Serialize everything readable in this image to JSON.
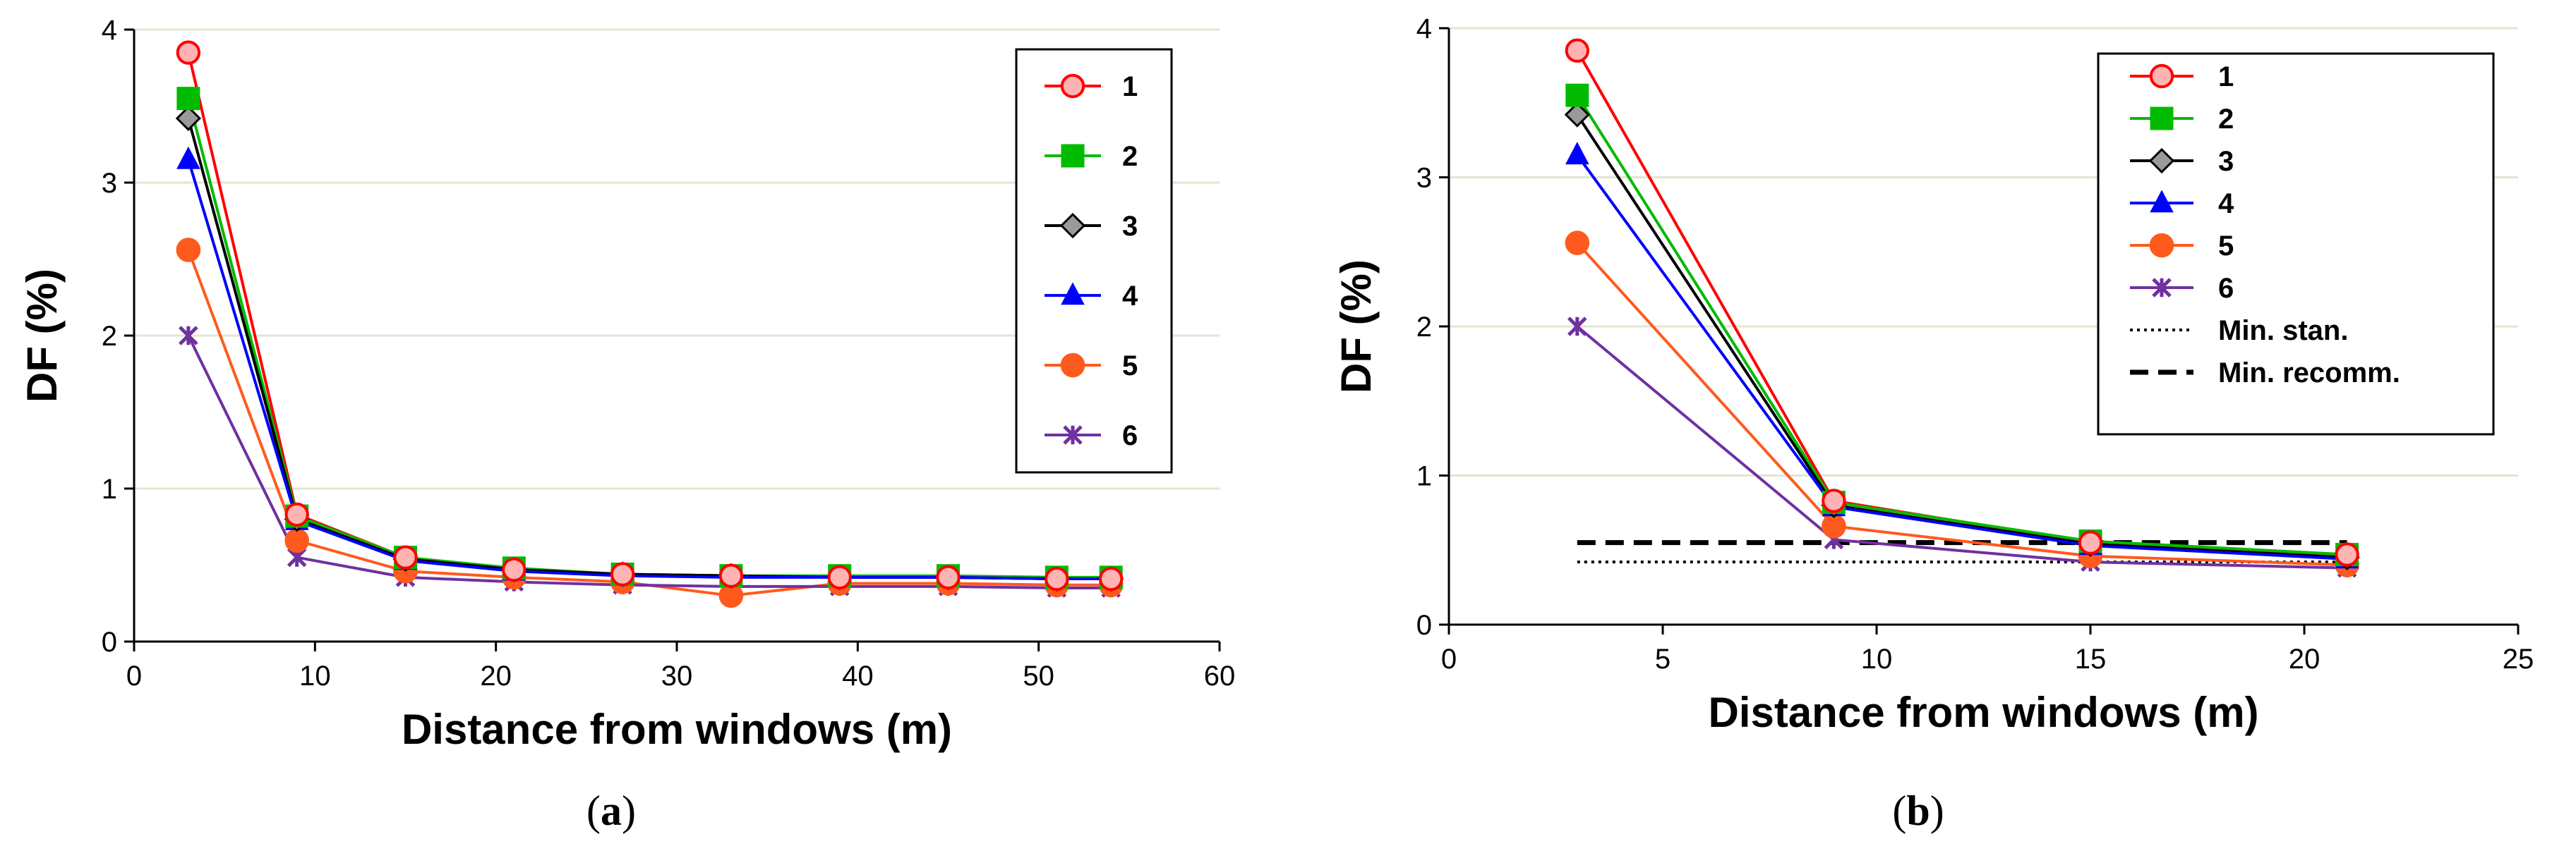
{
  "chart_data": [
    {
      "type": "line",
      "panel": "a",
      "caption": "(a)",
      "caption_letter": "a",
      "xlabel": "Distance from windows (m)",
      "ylabel": "DF (%)",
      "xlim": [
        0,
        60
      ],
      "ylim": [
        0,
        4
      ],
      "xticks": [
        0,
        10,
        20,
        30,
        40,
        50,
        60
      ],
      "yticks": [
        0,
        1,
        2,
        3,
        4
      ],
      "grid": "horizontal",
      "legend_position": "top-right",
      "x": [
        3,
        9,
        15,
        21,
        27,
        33,
        39,
        45,
        51,
        54
      ],
      "series": [
        {
          "name": "1",
          "color": "#ff0000",
          "marker": "circle-open",
          "values": [
            3.85,
            0.83,
            0.55,
            0.47,
            0.44,
            0.43,
            0.42,
            0.42,
            0.41,
            0.41
          ]
        },
        {
          "name": "2",
          "color": "#00bb00",
          "marker": "square",
          "values": [
            3.55,
            0.82,
            0.55,
            0.48,
            0.44,
            0.43,
            0.43,
            0.43,
            0.42,
            0.42
          ]
        },
        {
          "name": "3",
          "color": "#000000",
          "marker": "diamond",
          "values": [
            3.42,
            0.8,
            0.54,
            0.47,
            0.44,
            0.43,
            0.42,
            0.42,
            0.41,
            0.41
          ]
        },
        {
          "name": "4",
          "color": "#0000ff",
          "marker": "triangle",
          "values": [
            3.15,
            0.79,
            0.53,
            0.46,
            0.43,
            0.42,
            0.42,
            0.42,
            0.41,
            0.41
          ]
        },
        {
          "name": "5",
          "color": "#ff5a1e",
          "marker": "circle",
          "values": [
            2.56,
            0.66,
            0.46,
            0.42,
            0.39,
            0.3,
            0.38,
            0.38,
            0.37,
            0.37
          ]
        },
        {
          "name": "6",
          "color": "#7030a0",
          "marker": "x-star",
          "values": [
            2.0,
            0.55,
            0.42,
            0.39,
            0.37,
            0.36,
            0.36,
            0.36,
            0.35,
            0.35
          ]
        }
      ]
    },
    {
      "type": "line",
      "panel": "b",
      "caption": "(b)",
      "caption_letter": "b",
      "xlabel": "Distance from windows (m)",
      "ylabel": "DF (%)",
      "xlim": [
        0,
        25
      ],
      "ylim": [
        0,
        4
      ],
      "xticks": [
        0,
        5,
        10,
        15,
        20,
        25
      ],
      "yticks": [
        0,
        1,
        2,
        3,
        4
      ],
      "grid": "horizontal",
      "legend_position": "top-right",
      "x": [
        3,
        9,
        15,
        21
      ],
      "series": [
        {
          "name": "1",
          "color": "#ff0000",
          "marker": "circle-open",
          "values": [
            3.85,
            0.83,
            0.55,
            0.47
          ]
        },
        {
          "name": "2",
          "color": "#00bb00",
          "marker": "square",
          "values": [
            3.55,
            0.82,
            0.56,
            0.47
          ]
        },
        {
          "name": "3",
          "color": "#000000",
          "marker": "diamond",
          "values": [
            3.42,
            0.8,
            0.54,
            0.45
          ]
        },
        {
          "name": "4",
          "color": "#0000ff",
          "marker": "triangle",
          "values": [
            3.15,
            0.79,
            0.53,
            0.44
          ]
        },
        {
          "name": "5",
          "color": "#ff5a1e",
          "marker": "circle",
          "values": [
            2.56,
            0.66,
            0.46,
            0.4
          ]
        },
        {
          "name": "6",
          "color": "#7030a0",
          "marker": "x-star",
          "values": [
            2.0,
            0.57,
            0.42,
            0.38
          ]
        }
      ],
      "reference_lines": [
        {
          "name": "Min. stan.",
          "style": "dotted",
          "color": "#000000",
          "x": [
            3,
            21
          ],
          "y": 0.42
        },
        {
          "name": "Min. recomm.",
          "style": "dashed",
          "color": "#000000",
          "x": [
            3,
            21
          ],
          "y": 0.55
        }
      ]
    }
  ]
}
